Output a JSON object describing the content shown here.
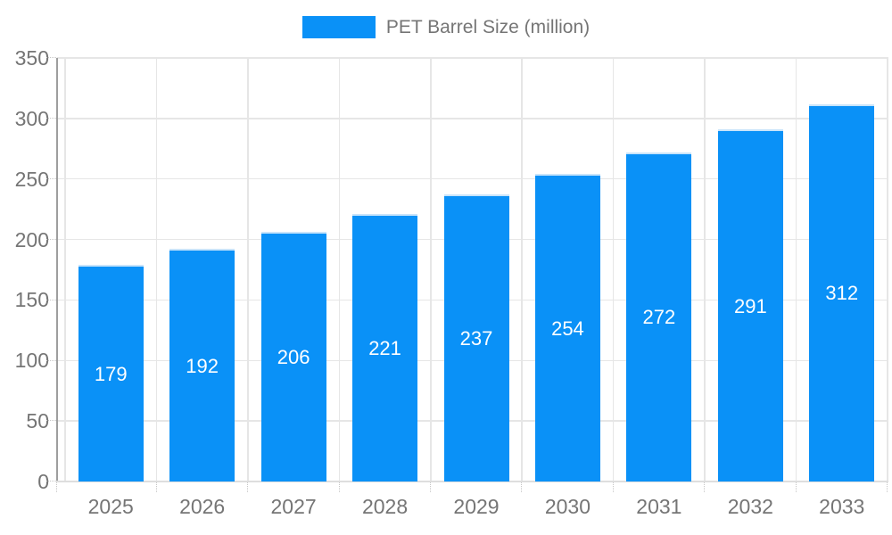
{
  "legend": {
    "label": "PET Barrel Size (million)"
  },
  "chart_data": {
    "type": "bar",
    "title": "",
    "series_label": "PET Barrel Size (million)",
    "categories": [
      "2025",
      "2026",
      "2027",
      "2028",
      "2029",
      "2030",
      "2031",
      "2032",
      "2033"
    ],
    "values": [
      179,
      192,
      206,
      221,
      237,
      254,
      272,
      291,
      312
    ],
    "value_labels_visible": true,
    "xlabel": "",
    "ylabel": "",
    "ylim": [
      0,
      350
    ],
    "yticks": [
      0,
      50,
      100,
      150,
      200,
      250,
      300,
      350
    ],
    "grid": "both",
    "legend_position": "top-center",
    "colors": {
      "bar_fill": "#0a91f7",
      "bar_border": "#c9e4fa",
      "value_label": "#ffffff",
      "axis_text": "#757575",
      "gridline": "#e6e6e6",
      "axis_line": "#9e9e9e",
      "baseline": "#dedede"
    }
  }
}
